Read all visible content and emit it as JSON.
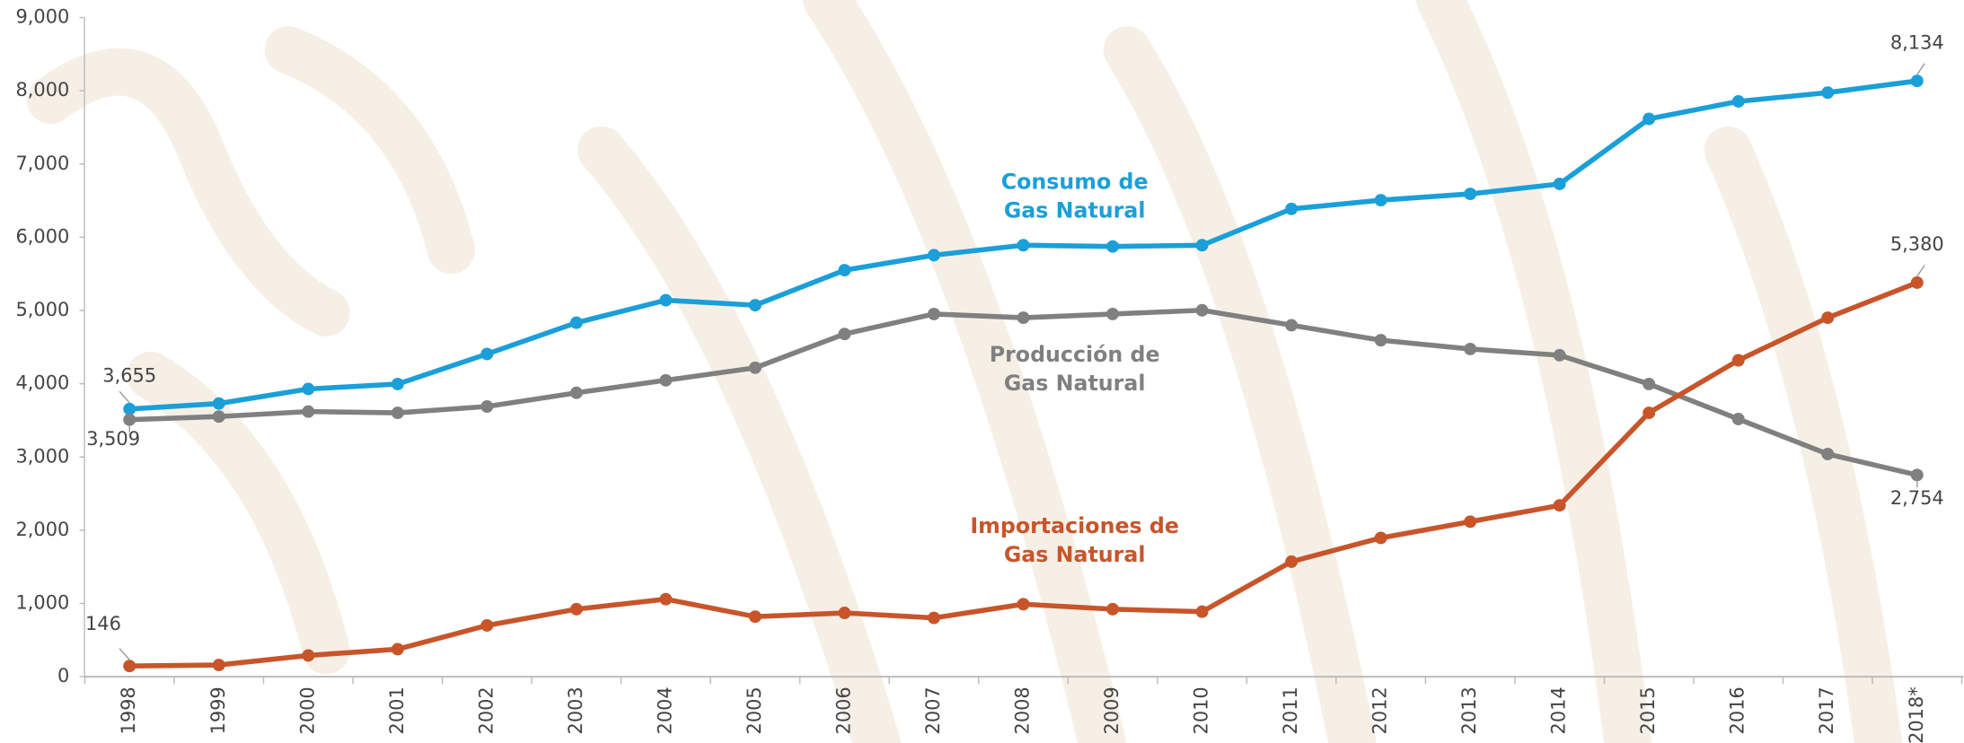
{
  "chart_data": {
    "type": "line",
    "categories": [
      "1998",
      "1999",
      "2000",
      "2001",
      "2002",
      "2003",
      "2004",
      "2005",
      "2006",
      "2007",
      "2008",
      "2009",
      "2010",
      "2011",
      "2012",
      "2013",
      "2014",
      "2015",
      "2016",
      "2017",
      "2018*"
    ],
    "ylim": [
      0,
      9000
    ],
    "yticks": [
      0,
      {
        "value": 1000,
        "label": "1,000"
      },
      {
        "value": 2000,
        "label": "2,000"
      },
      {
        "value": 3000,
        "label": "3,000"
      },
      {
        "value": 4000,
        "label": "4,000"
      },
      {
        "value": 5000,
        "label": "5,000"
      },
      {
        "value": 6000,
        "label": "6,000"
      },
      {
        "value": 7000,
        "label": "7,000"
      },
      {
        "value": 8000,
        "label": "8,000"
      },
      {
        "value": 9000,
        "label": "9,000"
      }
    ],
    "series": [
      {
        "name": "Consumo de Gas Natural",
        "color": "#1a9fd9",
        "values": [
          3655,
          3730,
          3928,
          3996,
          4406,
          4833,
          5140,
          5072,
          5550,
          5755,
          5891,
          5874,
          5891,
          6387,
          6506,
          6592,
          6728,
          7616,
          7855,
          7975,
          8134
        ],
        "value_labels": [
          "3,655",
          null,
          null,
          null,
          null,
          null,
          null,
          null,
          null,
          null,
          null,
          null,
          null,
          null,
          null,
          null,
          null,
          null,
          null,
          null,
          "8,134"
        ]
      },
      {
        "name": "Producción de Gas Natural",
        "color": "#808080",
        "values": [
          3509,
          3552,
          3620,
          3603,
          3689,
          3876,
          4047,
          4218,
          4679,
          4952,
          4901,
          4952,
          5003,
          4799,
          4594,
          4474,
          4389,
          3996,
          3518,
          3040,
          2754
        ],
        "value_labels": [
          "3,509",
          null,
          null,
          null,
          null,
          null,
          null,
          null,
          null,
          null,
          null,
          null,
          null,
          null,
          null,
          null,
          null,
          null,
          null,
          null,
          "2,754"
        ]
      },
      {
        "name": "Importaciones de Gas Natural",
        "color": "#c8552a",
        "values": [
          146,
          160,
          290,
          376,
          700,
          922,
          1059,
          820,
          871,
          803,
          990,
          922,
          888,
          1571,
          1895,
          2117,
          2339,
          3603,
          4320,
          4901,
          5380
        ],
        "value_labels": [
          "146",
          null,
          null,
          null,
          null,
          null,
          null,
          null,
          null,
          null,
          null,
          null,
          null,
          null,
          null,
          null,
          null,
          null,
          null,
          null,
          "5,380"
        ]
      }
    ]
  }
}
